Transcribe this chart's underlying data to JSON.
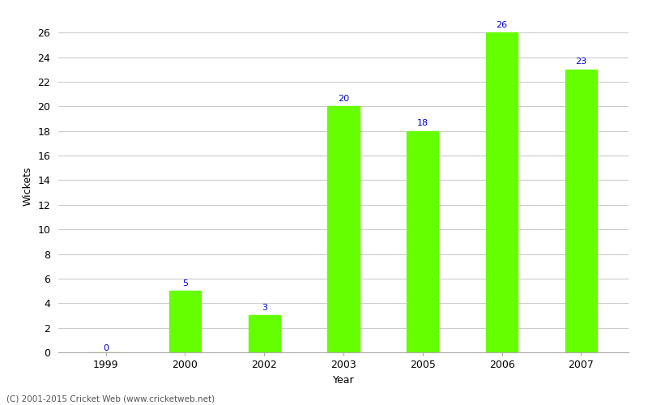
{
  "years": [
    "1999",
    "2000",
    "2002",
    "2003",
    "2005",
    "2006",
    "2007"
  ],
  "values": [
    0,
    5,
    3,
    20,
    18,
    26,
    23
  ],
  "bar_color": "#66ff00",
  "label_color": "#0000cc",
  "xlabel": "Year",
  "ylabel": "Wickets",
  "ylim": [
    0,
    27
  ],
  "yticks": [
    0,
    2,
    4,
    6,
    8,
    10,
    12,
    14,
    16,
    18,
    20,
    22,
    24,
    26
  ],
  "bar_width": 0.4,
  "background_color": "#ffffff",
  "grid_color": "#cccccc",
  "footer": "(C) 2001-2015 Cricket Web (www.cricketweb.net)",
  "label_fontsize": 8,
  "axis_fontsize": 9,
  "tick_fontsize": 9
}
